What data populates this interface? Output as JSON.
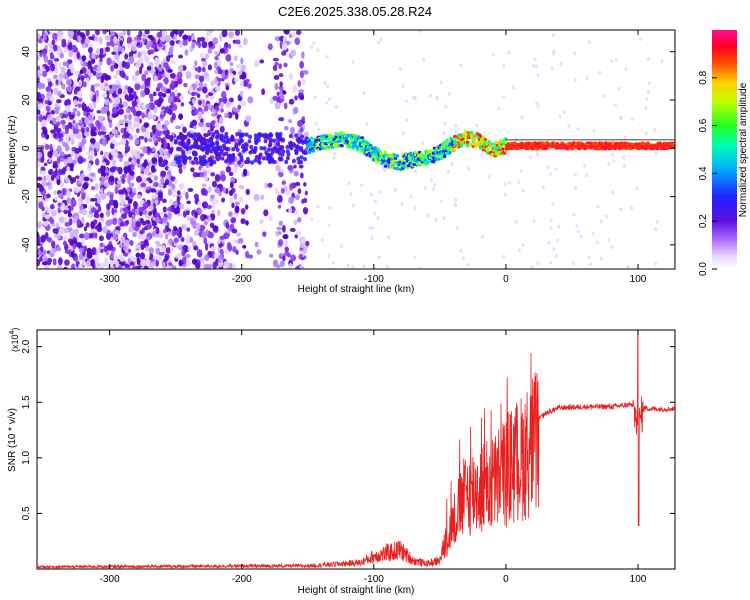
{
  "title": "C2E6.2025.338.05.28.R24",
  "chart_data": [
    {
      "type": "heatmap",
      "name": "spectrogram",
      "xlabel": "Height of straight line (km)",
      "ylabel": "Frequency (Hz)",
      "xlim": [
        -355,
        128
      ],
      "ylim": [
        -50,
        49
      ],
      "xticks": [
        "-300",
        "-200",
        "-100",
        "0",
        "100"
      ],
      "xtick_values": [
        -300,
        -200,
        -100,
        0,
        100
      ],
      "yticks": [
        "-40",
        "-20",
        "0",
        "20",
        "40"
      ],
      "ytick_values": [
        -40,
        -20,
        0,
        20,
        40
      ],
      "colorbar": {
        "label": "Normalized spectral amplitude",
        "range": [
          0,
          1
        ],
        "ticks": [
          "0.0",
          "0.2",
          "0.4",
          "0.6",
          "0.8"
        ],
        "tick_values": [
          0.0,
          0.2,
          0.4,
          0.6,
          0.8
        ]
      },
      "ridge_center_freq": {
        "x": [
          -150,
          -140,
          -125,
          -110,
          -95,
          -80,
          -65,
          -50,
          -40,
          -30,
          -20,
          -15,
          -10,
          -5,
          0,
          20,
          60,
          100,
          128
        ],
        "freq": [
          1,
          2,
          4,
          2,
          -4,
          -6,
          -4,
          -2,
          2,
          4,
          3,
          1,
          -1,
          0,
          1,
          1,
          1,
          1,
          1
        ]
      },
      "colors": [
        "#ffffff",
        "#d6b8ff",
        "#8b35f0",
        "#5a10d8",
        "#1a1aff",
        "#00c8ff",
        "#00ff70",
        "#ffe000",
        "#ff2020",
        "#ff20b0"
      ]
    },
    {
      "type": "line",
      "name": "snr",
      "xlabel": "Height of straight line (km)",
      "ylabel": "SNR (10 * v/v)",
      "y_multiplier": "(x10",
      "y_multiplier_exp": "4",
      "y_multiplier_close": ")",
      "xlim": [
        -355,
        128
      ],
      "ylim": [
        0,
        2.15
      ],
      "xticks": [
        "-300",
        "-200",
        "-100",
        "0",
        "100"
      ],
      "xtick_values": [
        -300,
        -200,
        -100,
        0,
        100
      ],
      "yticks": [
        "0.5",
        "1.0",
        "1.5",
        "2.0"
      ],
      "ytick_values": [
        0.5,
        1.0,
        1.5,
        2.0
      ],
      "color": "#e82020",
      "series_envelope": {
        "x": [
          -355,
          -150,
          -110,
          -100,
          -80,
          -70,
          -60,
          -50,
          -40,
          -30,
          -20,
          -10,
          0,
          10,
          20,
          30,
          40,
          60,
          80,
          95,
          100,
          105,
          110,
          128
        ],
        "y": [
          0.02,
          0.03,
          0.06,
          0.12,
          0.18,
          0.08,
          0.05,
          0.08,
          0.5,
          0.8,
          0.85,
          0.9,
          1.05,
          1.15,
          1.3,
          1.4,
          1.45,
          1.46,
          1.46,
          1.48,
          1.3,
          1.45,
          1.44,
          1.44
        ]
      },
      "spikes": [
        {
          "x": 100,
          "y": 2.15
        },
        {
          "x": 100,
          "y": 0.39
        }
      ]
    }
  ]
}
